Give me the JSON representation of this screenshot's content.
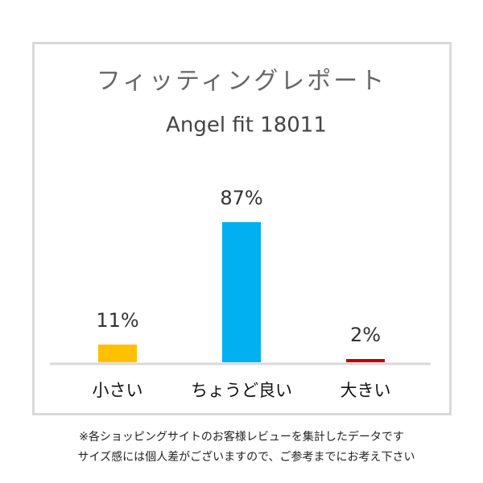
{
  "chart_data": {
    "type": "bar",
    "title": "フィッティングレポート",
    "subtitle": "Angel fit 18011",
    "categories": [
      "小さい",
      "ちょうど良い",
      "大きい"
    ],
    "values": [
      11,
      87,
      2
    ],
    "value_labels": [
      "11%",
      "87%",
      "2%"
    ],
    "colors": [
      "#ffc000",
      "#00b0f0",
      "#c00000"
    ],
    "notes": [
      "※各ショッピングサイトのお客様レビューを集計したデータです",
      "サイズ感には個人差がございますので、ご参考までにお考え下さい"
    ]
  }
}
